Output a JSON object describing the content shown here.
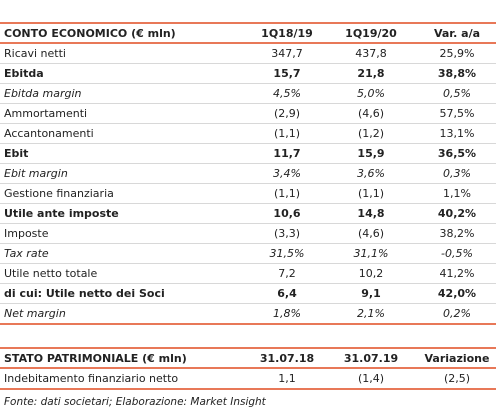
{
  "table1": {
    "header": [
      "CONTO ECONOMICO (€ mln)",
      "1Q18/19",
      "1Q19/20",
      "Var. a/a"
    ],
    "rows": [
      [
        "Ricavi netti",
        "347,7",
        "437,8",
        "25,9%"
      ],
      [
        "Ebitda",
        "15,7",
        "21,8",
        "38,8%"
      ],
      [
        "Ebitda margin",
        "4,5%",
        "5,0%",
        "0,5%"
      ],
      [
        "Ammortamenti",
        "(2,9)",
        "(4,6)",
        "57,5%"
      ],
      [
        "Accantonamenti",
        "(1,1)",
        "(1,2)",
        "13,1%"
      ],
      [
        "Ebit",
        "11,7",
        "15,9",
        "36,5%"
      ],
      [
        "Ebit margin",
        "3,4%",
        "3,6%",
        "0,3%"
      ],
      [
        "Gestione finanziaria",
        "(1,1)",
        "(1,1)",
        "1,1%"
      ],
      [
        "Utile ante imposte",
        "10,6",
        "14,8",
        "40,2%"
      ],
      [
        "Imposte",
        "(3,3)",
        "(4,6)",
        "38,2%"
      ],
      [
        "Tax rate",
        "31,5%",
        "31,1%",
        "-0,5%"
      ],
      [
        "Utile netto totale",
        "7,2",
        "10,2",
        "41,2%"
      ],
      [
        "di cui: Utile netto dei Soci",
        "6,4",
        "9,1",
        "42,0%"
      ],
      [
        "Net margin",
        "1,8%",
        "2,1%",
        "0,2%"
      ]
    ]
  },
  "table2": {
    "header": [
      "STATO PATRIMONIALE (€ mln)",
      "31.07.18",
      "31.07.19",
      "Variazione"
    ],
    "rows": [
      [
        "Indebitamento finanziario netto",
        "1,1",
        "(1,4)",
        "(2,5)"
      ]
    ]
  },
  "source": "Fonte: dati societari; Elaborazione: Market Insight"
}
